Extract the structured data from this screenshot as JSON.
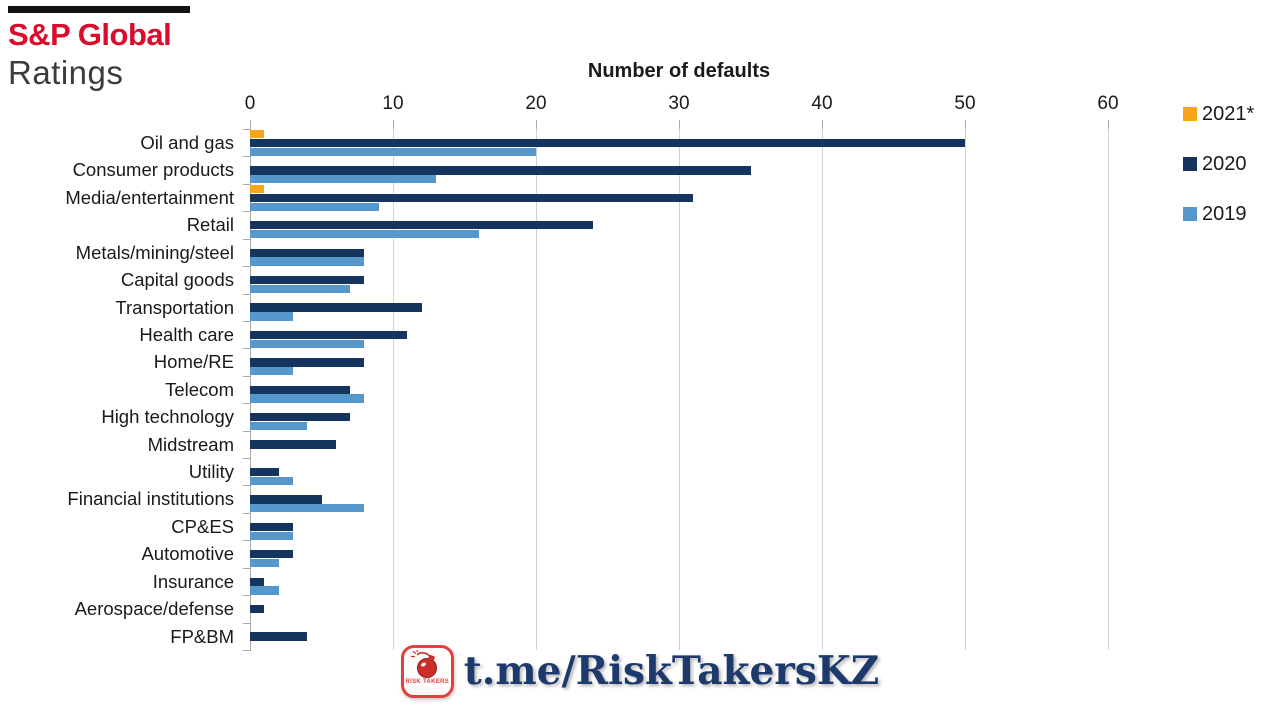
{
  "logo": {
    "brand": "S&P Global",
    "division": "Ratings"
  },
  "watermark": {
    "badge_text": "RISK TAKERS",
    "text": "t.me/RiskTakersKZ"
  },
  "colors": {
    "logo_red": "#DB0B2C",
    "logo_dark": "#3C3C3C",
    "text": "#1A1A1A",
    "grid": "#D3D3D3",
    "tick": "#A9A9A9",
    "watermark_navy": "#1E3A6D",
    "watermark_red": "#E2403E",
    "bomb_red": "#CC2F2B"
  },
  "chart_data": {
    "type": "bar",
    "orientation": "horizontal",
    "title": "Number of defaults",
    "x_ticks": [
      0,
      10,
      20,
      30,
      40,
      50,
      60
    ],
    "xlim": [
      0,
      62
    ],
    "grid": true,
    "legend_position": "top-right",
    "categories": [
      "Oil and gas",
      "Consumer products",
      "Media/entertainment",
      "Retail",
      "Metals/mining/steel",
      "Capital goods",
      "Transportation",
      "Health care",
      "Home/RE",
      "Telecom",
      "High technology",
      "Midstream",
      "Utility",
      "Financial institutions",
      "CP&ES",
      "Automotive",
      "Insurance",
      "Aerospace/defense",
      "FP&BM"
    ],
    "series": [
      {
        "name": "2021*",
        "color": "#F9A51A",
        "values": [
          1,
          0,
          1,
          0,
          0,
          0,
          0,
          0,
          0,
          0,
          0,
          0,
          0,
          0,
          0,
          0,
          0,
          0,
          0
        ]
      },
      {
        "name": "2020",
        "color": "#16355E",
        "values": [
          50,
          35,
          31,
          24,
          8,
          8,
          12,
          11,
          8,
          7,
          7,
          6,
          2,
          5,
          3,
          3,
          1,
          1,
          4
        ]
      },
      {
        "name": "2019",
        "color": "#5697CC",
        "values": [
          20,
          13,
          9,
          16,
          8,
          7,
          3,
          8,
          3,
          8,
          4,
          0,
          3,
          8,
          3,
          2,
          2,
          0,
          0
        ]
      }
    ]
  }
}
